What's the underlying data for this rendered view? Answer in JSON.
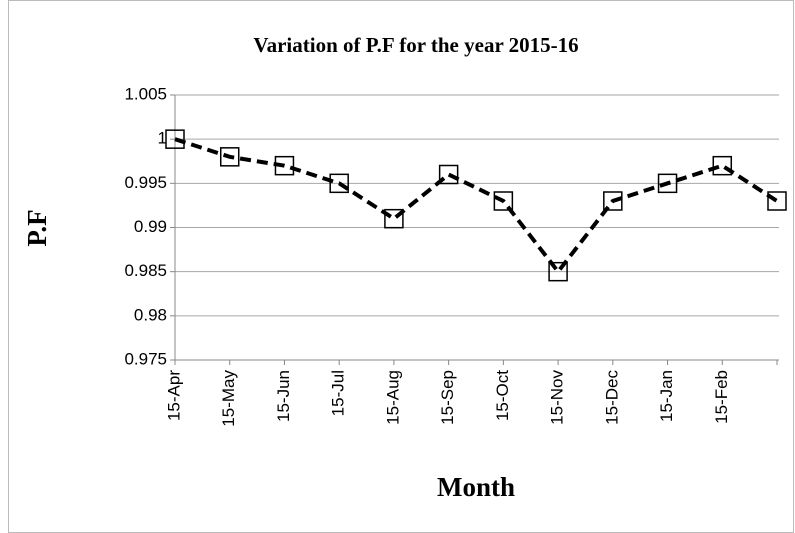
{
  "chart_data": {
    "type": "line",
    "title": "Variation of P.F for the year 2015-16",
    "x_label": "Month",
    "y_label": "P.F",
    "categories": [
      "15-Apr",
      "15-May",
      "15-Jun",
      "15-Jul",
      "15-Aug",
      "15-Sep",
      "15-Oct",
      "15-Nov",
      "15-Dec",
      "15-Jan",
      "15-Feb",
      null
    ],
    "series": [
      {
        "name": "P.F",
        "color": "#000000",
        "values": [
          1,
          0.998,
          0.997,
          0.995,
          0.991,
          0.996,
          0.993,
          0.985,
          0.993,
          0.995,
          0.997,
          0.993
        ]
      }
    ],
    "ylim": [
      0.975,
      1.005
    ],
    "yticks": [
      0.975,
      0.98,
      0.985,
      0.99,
      0.995,
      1,
      1.005
    ],
    "grid": true
  }
}
